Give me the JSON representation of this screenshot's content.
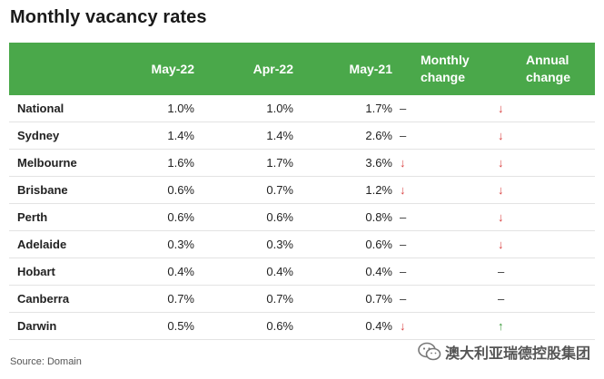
{
  "title": "Monthly vacancy rates",
  "source": "Source: Domain",
  "watermark": "澳大利亚瑞德控股集团",
  "colors": {
    "header_bg": "#4aa84a",
    "down": "#d94040",
    "up": "#3a9a3a"
  },
  "chart_data": {
    "type": "table",
    "title": "Monthly vacancy rates",
    "columns": [
      "",
      "May-22",
      "Apr-22",
      "May-21",
      "Monthly change",
      "Annual change"
    ],
    "header_lines": {
      "monthly": [
        "Monthly",
        "change"
      ],
      "annual": [
        "Annual",
        "change"
      ]
    },
    "rows": [
      {
        "region": "National",
        "may22": "1.0%",
        "apr22": "1.0%",
        "may21": "1.7%",
        "monthly": "–",
        "annual": "↓"
      },
      {
        "region": "Sydney",
        "may22": "1.4%",
        "apr22": "1.4%",
        "may21": "2.6%",
        "monthly": "–",
        "annual": "↓"
      },
      {
        "region": "Melbourne",
        "may22": "1.6%",
        "apr22": "1.7%",
        "may21": "3.6%",
        "monthly": "↓",
        "annual": "↓"
      },
      {
        "region": "Brisbane",
        "may22": "0.6%",
        "apr22": "0.7%",
        "may21": "1.2%",
        "monthly": "↓",
        "annual": "↓"
      },
      {
        "region": "Perth",
        "may22": "0.6%",
        "apr22": "0.6%",
        "may21": "0.8%",
        "monthly": "–",
        "annual": "↓"
      },
      {
        "region": "Adelaide",
        "may22": "0.3%",
        "apr22": "0.3%",
        "may21": "0.6%",
        "monthly": "–",
        "annual": "↓"
      },
      {
        "region": "Hobart",
        "may22": "0.4%",
        "apr22": "0.4%",
        "may21": "0.4%",
        "monthly": "–",
        "annual": "–"
      },
      {
        "region": "Canberra",
        "may22": "0.7%",
        "apr22": "0.7%",
        "may21": "0.7%",
        "monthly": "–",
        "annual": "–"
      },
      {
        "region": "Darwin",
        "may22": "0.5%",
        "apr22": "0.6%",
        "may21": "0.4%",
        "monthly": "↓",
        "annual": "↑"
      }
    ]
  }
}
